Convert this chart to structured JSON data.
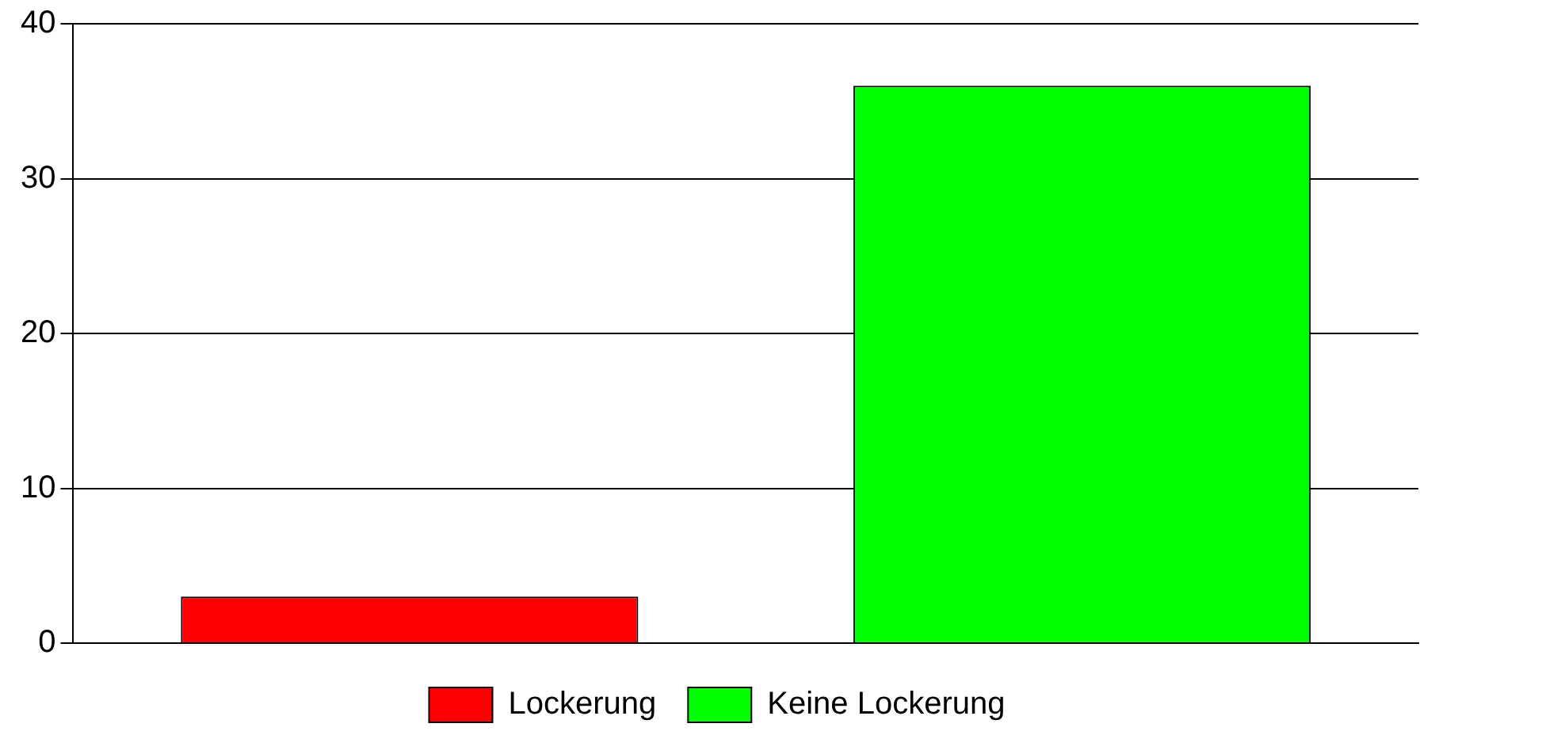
{
  "chart_data": {
    "type": "bar",
    "categories": [
      null,
      null
    ],
    "stacked": true,
    "series": [
      {
        "name": "Lockerung",
        "color": "#ff0000",
        "values": [
          3,
          null
        ]
      },
      {
        "name": "Keine Lockerung",
        "color": "#00ff00",
        "values": [
          null,
          36
        ]
      }
    ],
    "ylim": [
      0,
      40
    ],
    "yticks": [
      0,
      10,
      20,
      30,
      40
    ],
    "grid": "y",
    "legend": "bottom",
    "tick_labels": "y"
  }
}
